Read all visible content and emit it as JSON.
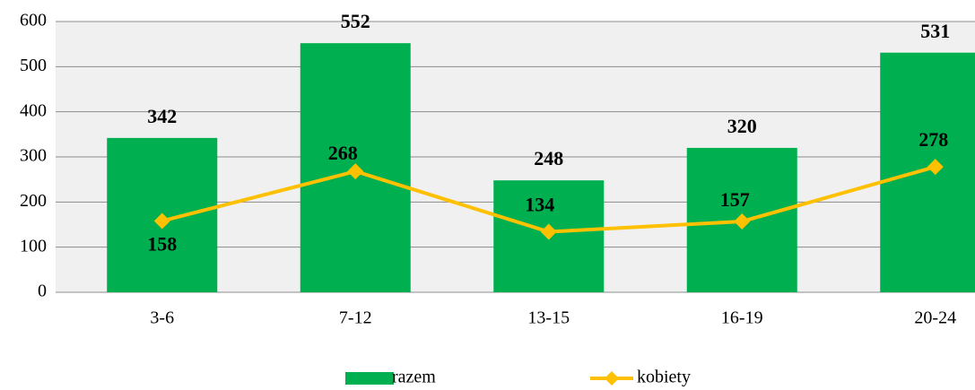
{
  "chart_data": {
    "type": "bar",
    "categories": [
      "3-6",
      "7-12",
      "13-15",
      "16-19",
      "20-24"
    ],
    "series": [
      {
        "name": "razem",
        "type": "bar",
        "color": "#00b050",
        "values": [
          342,
          552,
          248,
          320,
          531
        ]
      },
      {
        "name": "kobiety",
        "type": "line",
        "color": "#ffc000",
        "values": [
          158,
          268,
          134,
          157,
          278
        ]
      }
    ],
    "ylim": [
      0,
      600
    ],
    "yticks": [
      0,
      100,
      200,
      300,
      400,
      500,
      600
    ],
    "grid": true,
    "legend": "bottom"
  }
}
